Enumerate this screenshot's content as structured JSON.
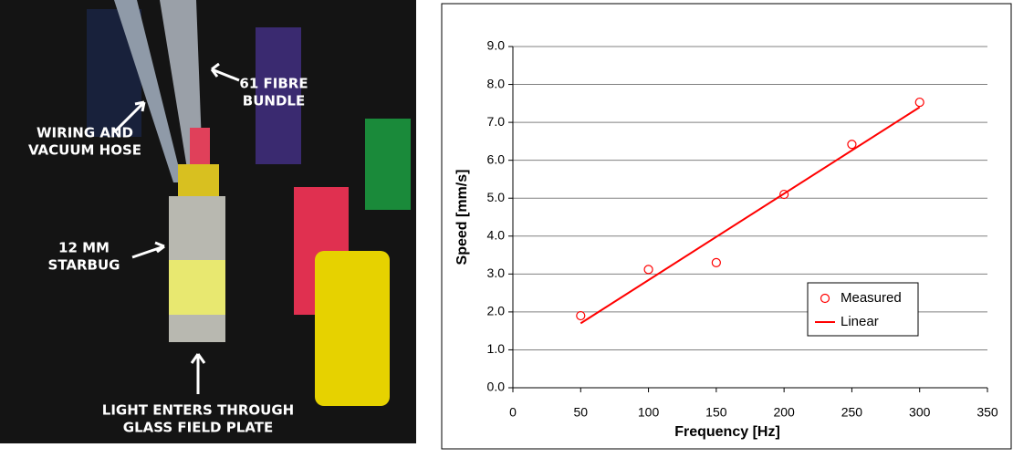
{
  "photo": {
    "labels": [
      {
        "lines": [
          "61 FIBRE",
          "BUNDLE"
        ]
      },
      {
        "lines": [
          "WIRING AND",
          "VACUUM HOSE"
        ]
      },
      {
        "lines": [
          "12 MM",
          "STARBUG"
        ]
      },
      {
        "lines": [
          "LIGHT ENTERS THROUGH",
          "GLASS FIELD PLATE"
        ]
      }
    ]
  },
  "chart_data": {
    "type": "scatter",
    "xlabel": "Frequency [Hz]",
    "ylabel": "Speed [mm/s]",
    "xlim": [
      0,
      350
    ],
    "xticks": [
      0,
      50,
      100,
      150,
      200,
      250,
      300,
      350
    ],
    "ylim": [
      0,
      9
    ],
    "yticks": [
      {
        "value": 0,
        "label": "0.0"
      },
      {
        "value": 1,
        "label": "1.0"
      },
      {
        "value": 2,
        "label": "2.0"
      },
      {
        "value": 3,
        "label": "3.0"
      },
      {
        "value": 4,
        "label": "4.0"
      },
      {
        "value": 5,
        "label": "5.0"
      },
      {
        "value": 6,
        "label": "6.0"
      },
      {
        "value": 7,
        "label": "7.0"
      },
      {
        "value": 8,
        "label": "8.0"
      },
      {
        "value": 9,
        "label": "9.0"
      }
    ],
    "grid": true,
    "legend": "lower right",
    "series": [
      {
        "name": "Measured",
        "color": "#ff0000",
        "style": "marker",
        "x": [
          50,
          100,
          150,
          200,
          250,
          300
        ],
        "values": [
          1.9,
          3.12,
          3.3,
          5.1,
          6.42,
          7.53
        ]
      },
      {
        "name": "Linear",
        "color": "#ff0000",
        "style": "line",
        "x": [
          50,
          300
        ],
        "values": [
          1.7,
          7.4
        ]
      }
    ]
  }
}
